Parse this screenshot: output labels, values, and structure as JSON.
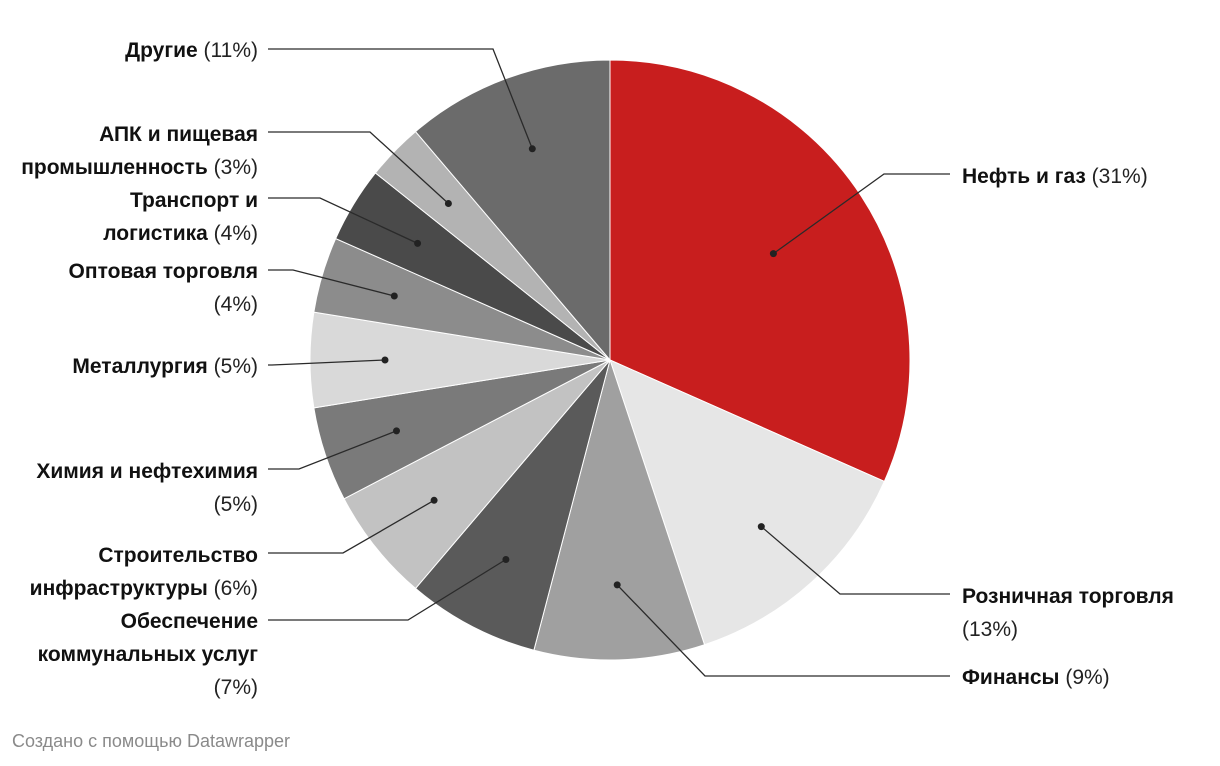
{
  "chart_data": {
    "type": "pie",
    "title": "",
    "slices": [
      {
        "label": "Нефть и газ",
        "pct_text": "(31%)",
        "value": 31,
        "color": "#c81e1e"
      },
      {
        "label": "Розничная торговля",
        "pct_text": "(13%)",
        "value": 13,
        "color": "#e6e6e6"
      },
      {
        "label": "Финансы",
        "pct_text": "(9%)",
        "value": 9,
        "color": "#a0a0a0"
      },
      {
        "label": "Обеспечение коммунальных услуг",
        "pct_text": "(7%)",
        "value": 7,
        "color": "#5a5a5a"
      },
      {
        "label": "Строительство инфраструктуры",
        "pct_text": "(6%)",
        "value": 6,
        "color": "#c2c2c2"
      },
      {
        "label": "Химия и нефтехимия",
        "pct_text": "(5%)",
        "value": 5,
        "color": "#7a7a7a"
      },
      {
        "label": "Металлургия",
        "pct_text": "(5%)",
        "value": 5,
        "color": "#d9d9d9"
      },
      {
        "label": "Оптовая торговля",
        "pct_text": "(4%)",
        "value": 4,
        "color": "#8c8c8c"
      },
      {
        "label": "Транспорт и логистика",
        "pct_text": "(4%)",
        "value": 4,
        "color": "#4a4a4a"
      },
      {
        "label": "АПК и пищевая промышленность",
        "pct_text": "(3%)",
        "value": 3,
        "color": "#b3b3b3"
      },
      {
        "label": "Другие",
        "pct_text": "(11%)",
        "value": 11,
        "color": "#6b6b6b"
      }
    ]
  },
  "footer": {
    "credit": "Создано с помощью Datawrapper"
  }
}
